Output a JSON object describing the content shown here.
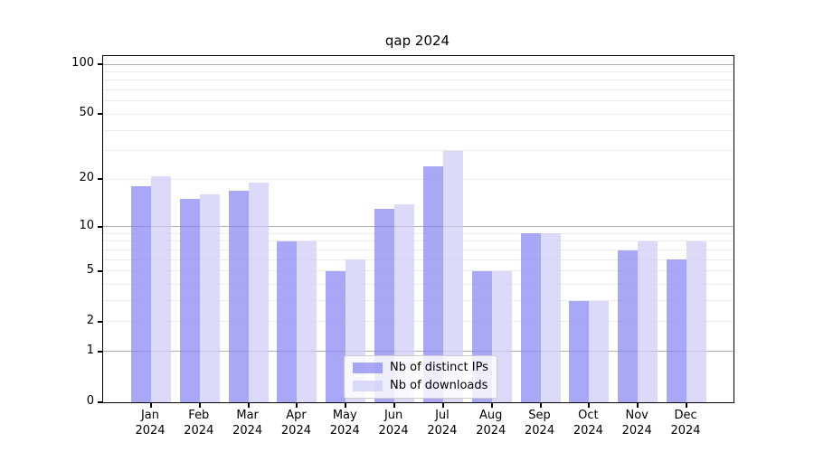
{
  "title": "qap 2024",
  "colors": {
    "bar_ips": "rgba(131,131,242,0.7)",
    "bar_downloads": "rgba(204,204,246,0.7)",
    "grid_major": "#b0b0b0",
    "grid_minor": "#ededed",
    "spine": "#000000",
    "legend_border": "#cccccc"
  },
  "legend": {
    "items": [
      {
        "label": "Nb of distinct IPs",
        "series": "ips"
      },
      {
        "label": "Nb of downloads",
        "series": "downloads"
      }
    ]
  },
  "chart_data": {
    "type": "bar",
    "title": "qap 2024",
    "months": [
      "Jan",
      "Feb",
      "Mar",
      "Apr",
      "May",
      "Jun",
      "Jul",
      "Aug",
      "Sep",
      "Oct",
      "Nov",
      "Dec"
    ],
    "year": "2024",
    "categories": [
      "Jan 2024",
      "Feb 2024",
      "Mar 2024",
      "Apr 2024",
      "May 2024",
      "Jun 2024",
      "Jul 2024",
      "Aug 2024",
      "Sep 2024",
      "Oct 2024",
      "Nov 2024",
      "Dec 2024"
    ],
    "series": [
      {
        "name": "Nb of distinct IPs",
        "key": "ips",
        "values": [
          18,
          15,
          17,
          8,
          5,
          13,
          24,
          5,
          9,
          3,
          7,
          6
        ]
      },
      {
        "name": "Nb of downloads",
        "key": "downloads",
        "values": [
          21,
          16,
          19,
          8,
          6,
          14,
          30,
          5,
          9,
          3,
          8,
          8
        ]
      }
    ],
    "y_scale": "log(v+1)",
    "ylim": [
      0,
      112
    ],
    "y_tick_labels": [
      "100",
      "50",
      "20",
      "10",
      "5",
      "2",
      "1",
      "0"
    ],
    "y_tick_values": [
      100,
      50,
      20,
      10,
      5,
      2,
      1,
      0
    ],
    "y_major_grid": [
      1,
      10,
      100
    ],
    "y_minor_grid": [
      2,
      3,
      4,
      5,
      6,
      7,
      8,
      9,
      20,
      30,
      40,
      50,
      60,
      70,
      80,
      90
    ],
    "legend_position": "lower center",
    "grid": "on"
  }
}
